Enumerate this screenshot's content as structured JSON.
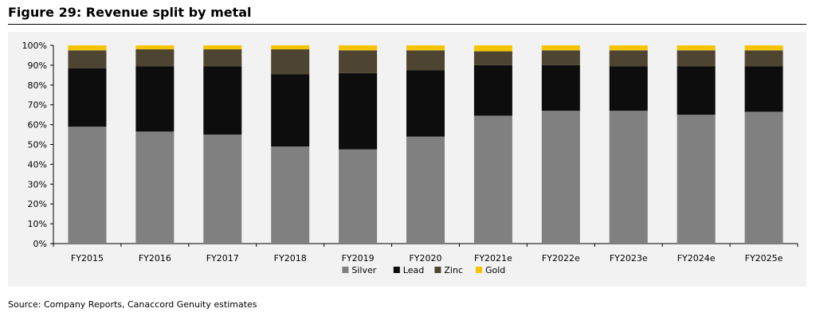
{
  "figure_title": "Figure 29: Revenue split by metal",
  "source_note": "Source: Company Reports, Canaccord Genuity estimates",
  "chart_data": {
    "type": "bar",
    "stacked": true,
    "categories": [
      "FY2015",
      "FY2016",
      "FY2017",
      "FY2018",
      "FY2019",
      "FY2020",
      "FY2021e",
      "FY2022e",
      "FY2023e",
      "FY2024e",
      "FY2025e"
    ],
    "series": [
      {
        "name": "Silver",
        "color": "#808080",
        "values": [
          59,
          56.5,
          55,
          49,
          47.5,
          54,
          64.5,
          67,
          67,
          65,
          66.5
        ]
      },
      {
        "name": "Lead",
        "color": "#0d0d0d",
        "values": [
          29.5,
          33,
          34.5,
          36.5,
          38.5,
          33.5,
          25.5,
          23,
          22.5,
          24.5,
          23
        ]
      },
      {
        "name": "Zinc",
        "color": "#4d4431",
        "values": [
          9,
          8.5,
          8.5,
          12.5,
          11.5,
          10,
          7,
          7.5,
          8,
          8,
          8
        ]
      },
      {
        "name": "Gold",
        "color": "#f5c400",
        "values": [
          2.5,
          2,
          2,
          2,
          2.5,
          2.5,
          3,
          2.5,
          2.5,
          2.5,
          2.5
        ]
      }
    ],
    "ylim": [
      0,
      100
    ],
    "yticks": [
      "0%",
      "10%",
      "20%",
      "30%",
      "40%",
      "50%",
      "60%",
      "70%",
      "80%",
      "90%",
      "100%"
    ],
    "grid": false,
    "legend_position": "bottom"
  }
}
